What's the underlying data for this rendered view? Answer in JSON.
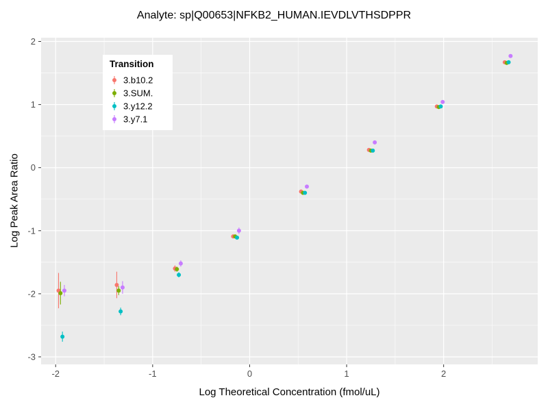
{
  "chart_data": {
    "type": "scatter",
    "title": "Analyte: sp|Q00653|NFKB2_HUMAN.IEVDLVTHSDPPR",
    "xlabel": "Log Theoretical Concentration (fmol/uL)",
    "ylabel": "Log Peak Area Ratio",
    "xlim": [
      -2.15,
      2.97
    ],
    "ylim": [
      -3.12,
      2.06
    ],
    "xticks": [
      -2,
      -1,
      0,
      1,
      2
    ],
    "yticks": [
      -3,
      -2,
      -1,
      0,
      1,
      2
    ],
    "minor_step": 0.5,
    "grid": true,
    "panel_bg": "#EBEBEB",
    "grid_color": "#FFFFFF",
    "tick_color": "#333333",
    "tick_label_color": "#4D4D4D",
    "legend": {
      "title": "Transition",
      "position": "inside-top-left",
      "bg": "#FFFFFF"
    },
    "series": [
      {
        "name": "3.b10.2",
        "color": "#F8766D",
        "x": [
          -1.97,
          -1.37,
          -0.77,
          -0.17,
          0.53,
          1.23,
          1.93,
          2.63
        ],
        "y": [
          -1.95,
          -1.86,
          -1.6,
          -1.09,
          -0.38,
          0.28,
          0.97,
          1.67
        ],
        "err": [
          0.28,
          0.21,
          0.05,
          0.03,
          0.02,
          0.02,
          0.02,
          0.01
        ]
      },
      {
        "name": "3.SUM.",
        "color": "#7CAE00",
        "x": [
          -1.95,
          -1.35,
          -0.75,
          -0.15,
          0.55,
          1.25,
          1.95,
          2.65
        ],
        "y": [
          -1.99,
          -1.95,
          -1.61,
          -1.09,
          -0.4,
          0.27,
          0.96,
          1.66
        ],
        "err": [
          0.18,
          0.07,
          0.04,
          0.02,
          0.02,
          0.02,
          0.01,
          0.01
        ]
      },
      {
        "name": "3.y12.2",
        "color": "#00BFC4",
        "x": [
          -1.93,
          -1.33,
          -0.73,
          -0.13,
          0.57,
          1.27,
          1.97,
          2.67
        ],
        "y": [
          -2.68,
          -2.28,
          -1.7,
          -1.11,
          -0.4,
          0.27,
          0.97,
          1.67
        ],
        "err": [
          0.08,
          0.06,
          0.04,
          0.02,
          0.02,
          0.02,
          0.01,
          0.01
        ]
      },
      {
        "name": "3.y7.1",
        "color": "#C77CFF",
        "x": [
          -1.91,
          -1.31,
          -0.71,
          -0.11,
          0.59,
          1.29,
          1.99,
          2.69
        ],
        "y": [
          -1.95,
          -1.9,
          -1.52,
          -1.0,
          -0.3,
          0.4,
          1.04,
          1.77
        ],
        "err": [
          0.09,
          0.1,
          0.05,
          0.05,
          0.03,
          0.03,
          0.02,
          0.02
        ]
      }
    ]
  }
}
